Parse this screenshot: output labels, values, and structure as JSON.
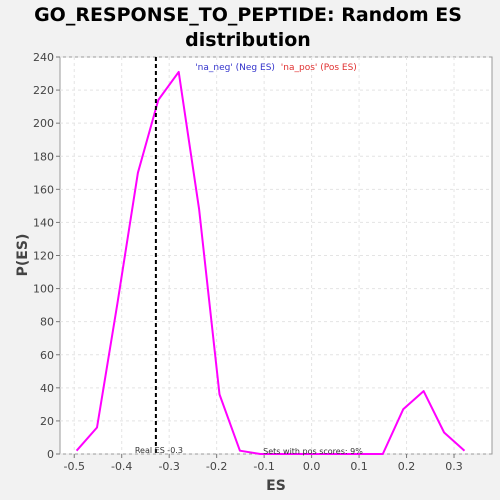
{
  "chart_data": {
    "type": "line",
    "title_line1": "GO_RESPONSE_TO_PEPTIDE: Random ES",
    "title_line2": "distribution",
    "xlabel": "ES",
    "ylabel": "P(ES)",
    "xlim": [
      -0.53,
      0.38
    ],
    "ylim": [
      0,
      240
    ],
    "x_ticks": [
      "-0.5",
      "-0.4",
      "-0.3",
      "-0.2",
      "-0.1",
      "0.0",
      "0.1",
      "0.2",
      "0.3"
    ],
    "x_tick_values": [
      -0.5,
      -0.4,
      -0.3,
      -0.2,
      -0.1,
      0.0,
      0.1,
      0.2,
      0.3
    ],
    "y_ticks": [
      "0",
      "20",
      "40",
      "60",
      "80",
      "100",
      "120",
      "140",
      "160",
      "180",
      "200",
      "220",
      "240"
    ],
    "y_tick_values": [
      0,
      20,
      40,
      60,
      80,
      100,
      120,
      140,
      160,
      180,
      200,
      220,
      240
    ],
    "grid": true,
    "line_color": "#ff00ff",
    "series": [
      {
        "values_x": [
          -0.495,
          -0.452,
          -0.409,
          -0.366,
          -0.323,
          -0.28,
          -0.237,
          -0.194,
          -0.151,
          -0.108,
          -0.065,
          -0.022,
          0.021,
          0.064,
          0.107,
          0.15,
          0.193,
          0.236,
          0.279,
          0.322
        ],
        "values_y": [
          2,
          16,
          91,
          170,
          214,
          231,
          148,
          36,
          2,
          0,
          0,
          0,
          0,
          0,
          0,
          0,
          27,
          38,
          13,
          2
        ]
      }
    ],
    "legend": {
      "neg_label": "'na_neg' (Neg ES)",
      "neg_color": "#3333cc",
      "pos_label": "'na_pos' (Pos ES)",
      "pos_color": "#e03030",
      "placement": "top-center"
    },
    "real_es": {
      "value": -0.328,
      "label": "Real ES -0.3"
    },
    "annotation": {
      "label": "Sets with pos scores: 9%"
    }
  }
}
